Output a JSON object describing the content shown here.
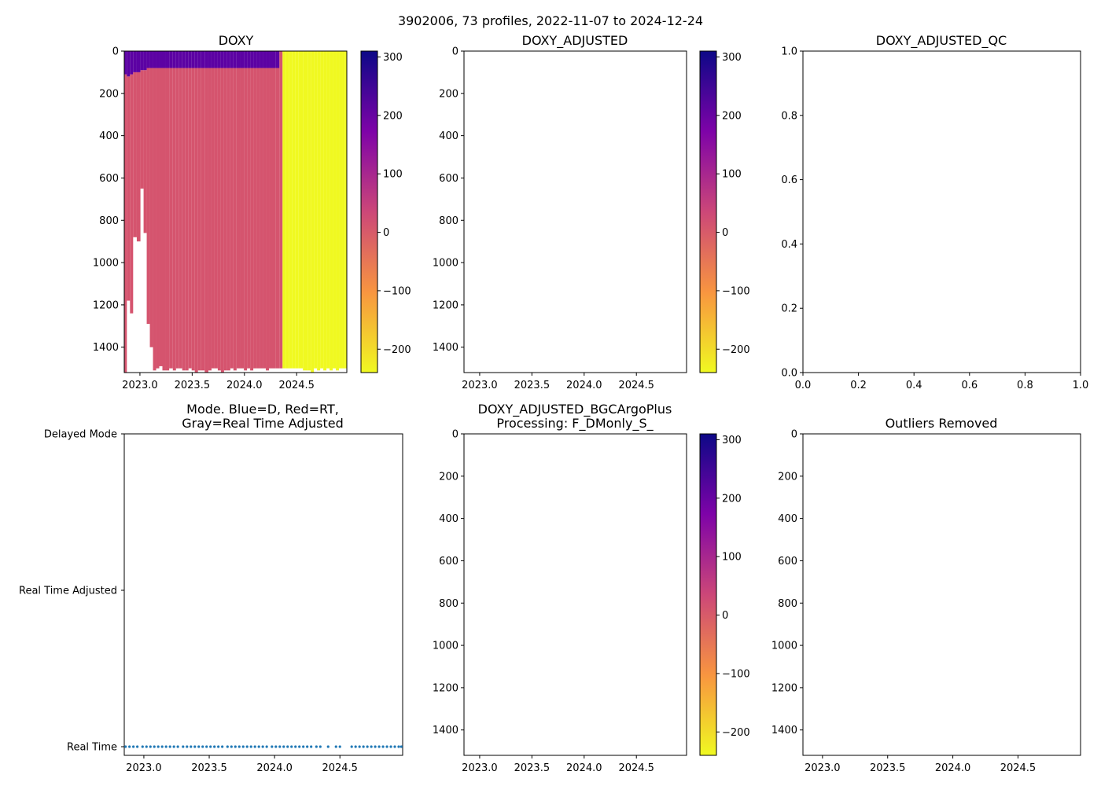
{
  "figure": {
    "suptitle": "3902006, 73 profiles, 2022-11-07 to 2024-12-24"
  },
  "colorbar_ticks": [
    "300",
    "200",
    "100",
    "0",
    "−100",
    "−200"
  ],
  "depth_ticks": [
    "0",
    "200",
    "400",
    "600",
    "800",
    "1000",
    "1200",
    "1400"
  ],
  "time_ticks": [
    "2023.0",
    "2023.5",
    "2024.0",
    "2024.5"
  ],
  "unit_ticks": [
    "0.0",
    "0.2",
    "0.4",
    "0.6",
    "0.8",
    "1.0"
  ],
  "mode_ticks": [
    "Delayed Mode",
    "Real Time Adjusted",
    "Real Time"
  ],
  "colors": {
    "colormap": [
      "#0d0887",
      "#7e03a8",
      "#cc4778",
      "#f89540",
      "#f0f921"
    ],
    "good_value": "#d5546e",
    "surface_value": "#5c02a3",
    "bad_value": "#f0f921",
    "mode_dot": "#1f77b4"
  },
  "chart_data": [
    {
      "type": "heatmap",
      "title": "DOXY",
      "xlabel": "",
      "ylabel": "",
      "xlim": [
        2022.85,
        2024.98
      ],
      "ylim": [
        1520,
        0
      ],
      "colorbar": {
        "range": [
          -240,
          310
        ],
        "cmap": "plasma",
        "ticks": [
          300,
          200,
          100,
          0,
          -100,
          -200
        ]
      },
      "profile_times": [
        2022.86,
        2022.89,
        2022.92,
        2022.95,
        2022.99,
        2023.02,
        2023.05,
        2023.08,
        2023.11,
        2023.14,
        2023.17,
        2023.2,
        2023.23,
        2023.26,
        2023.3,
        2023.33,
        2023.36,
        2023.39,
        2023.42,
        2023.45,
        2023.48,
        2023.51,
        2023.54,
        2023.57,
        2023.6,
        2023.64,
        2023.67,
        2023.7,
        2023.73,
        2023.76,
        2023.79,
        2023.82,
        2023.85,
        2023.88,
        2023.91,
        2023.94,
        2023.98,
        2024.01,
        2024.04,
        2024.07,
        2024.1,
        2024.13,
        2024.16,
        2024.19,
        2024.22,
        2024.25,
        2024.28,
        2024.32,
        2024.35,
        2024.38,
        2024.41,
        2024.44,
        2024.47,
        2024.5,
        2024.53,
        2024.59,
        2024.62,
        2024.65,
        2024.68,
        2024.71,
        2024.74,
        2024.77,
        2024.8,
        2024.83,
        2024.86,
        2024.89,
        2024.92,
        2024.95,
        2024.97
      ],
      "max_depths": [
        1520,
        1180,
        1240,
        880,
        900,
        650,
        860,
        1290,
        1400,
        1510,
        1500,
        1490,
        1510,
        1510,
        1500,
        1510,
        1500,
        1500,
        1510,
        1510,
        1500,
        1510,
        1520,
        1510,
        1510,
        1520,
        1510,
        1500,
        1500,
        1510,
        1520,
        1510,
        1510,
        1500,
        1510,
        1500,
        1500,
        1510,
        1500,
        1510,
        1500,
        1500,
        1500,
        1500,
        1510,
        1500,
        1500,
        1500,
        1500,
        1500,
        1500,
        1500,
        1500,
        1500,
        1500,
        1510,
        1510,
        1520,
        1500,
        1510,
        1500,
        1510,
        1500,
        1510,
        1500,
        1510,
        1500,
        1500,
        1500
      ],
      "surface_layer_depths": [
        110,
        120,
        110,
        100,
        100,
        90,
        90,
        80,
        80,
        80,
        80,
        80,
        80,
        80,
        80,
        80,
        80,
        80,
        80,
        80,
        80,
        80,
        80,
        80,
        80,
        80,
        80,
        80,
        80,
        80,
        80,
        80,
        80,
        80,
        80,
        80,
        80,
        80,
        80,
        80,
        80,
        80,
        80,
        80,
        80,
        80,
        80,
        80,
        0,
        0,
        0,
        0,
        0,
        0,
        0,
        0,
        0,
        0,
        0,
        0,
        0,
        0,
        0,
        0,
        0,
        0,
        0,
        0,
        0
      ],
      "surface_value": 260,
      "interior_value": 30,
      "bad_after": 2024.36,
      "bad_value": -240
    },
    {
      "type": "heatmap",
      "title": "DOXY_ADJUSTED",
      "xlabel": "",
      "ylabel": "",
      "xlim": [
        2022.85,
        2024.98
      ],
      "ylim": [
        1520,
        0
      ],
      "colorbar": {
        "range": [
          -240,
          310
        ],
        "cmap": "plasma",
        "ticks": [
          300,
          200,
          100,
          0,
          -100,
          -200
        ]
      },
      "values": []
    },
    {
      "type": "scatter",
      "title": "DOXY_ADJUSTED_QC",
      "xlabel": "",
      "ylabel": "",
      "xlim": [
        0,
        1
      ],
      "ylim": [
        0,
        1
      ],
      "values": []
    },
    {
      "type": "scatter",
      "title": "Mode. Blue=D, Red=RT,",
      "subtitle": "Gray=Real Time Adjusted",
      "xlabel": "",
      "ylabel": "",
      "xlim": [
        2022.85,
        2024.98
      ],
      "categories": [
        "Real Time",
        "Real Time Adjusted",
        "Delayed Mode"
      ],
      "x": [
        2022.86,
        2022.89,
        2022.92,
        2022.95,
        2022.99,
        2023.02,
        2023.05,
        2023.08,
        2023.11,
        2023.14,
        2023.17,
        2023.2,
        2023.23,
        2023.26,
        2023.3,
        2023.33,
        2023.36,
        2023.39,
        2023.42,
        2023.45,
        2023.48,
        2023.51,
        2023.54,
        2023.57,
        2023.6,
        2023.64,
        2023.67,
        2023.7,
        2023.73,
        2023.76,
        2023.79,
        2023.82,
        2023.85,
        2023.88,
        2023.91,
        2023.94,
        2023.98,
        2024.01,
        2024.04,
        2024.07,
        2024.1,
        2024.13,
        2024.16,
        2024.19,
        2024.22,
        2024.25,
        2024.28,
        2024.32,
        2024.35,
        2024.41,
        2024.47,
        2024.5,
        2024.59,
        2024.62,
        2024.65,
        2024.68,
        2024.71,
        2024.74,
        2024.77,
        2024.8,
        2024.83,
        2024.86,
        2024.89,
        2024.92,
        2024.95,
        2024.97
      ],
      "y": "Real Time"
    },
    {
      "type": "heatmap",
      "title": "DOXY_ADJUSTED_BGCArgoPlus",
      "subtitle": "Processing: F_DMonly_S_",
      "xlabel": "",
      "ylabel": "",
      "xlim": [
        2022.85,
        2024.98
      ],
      "ylim": [
        1520,
        0
      ],
      "colorbar": {
        "range": [
          -240,
          310
        ],
        "cmap": "plasma",
        "ticks": [
          300,
          200,
          100,
          0,
          -100,
          -200
        ]
      },
      "values": []
    },
    {
      "type": "scatter",
      "title": "Outliers Removed",
      "xlabel": "",
      "ylabel": "",
      "xlim": [
        2022.85,
        2024.98
      ],
      "ylim": [
        1520,
        0
      ],
      "values": []
    }
  ]
}
